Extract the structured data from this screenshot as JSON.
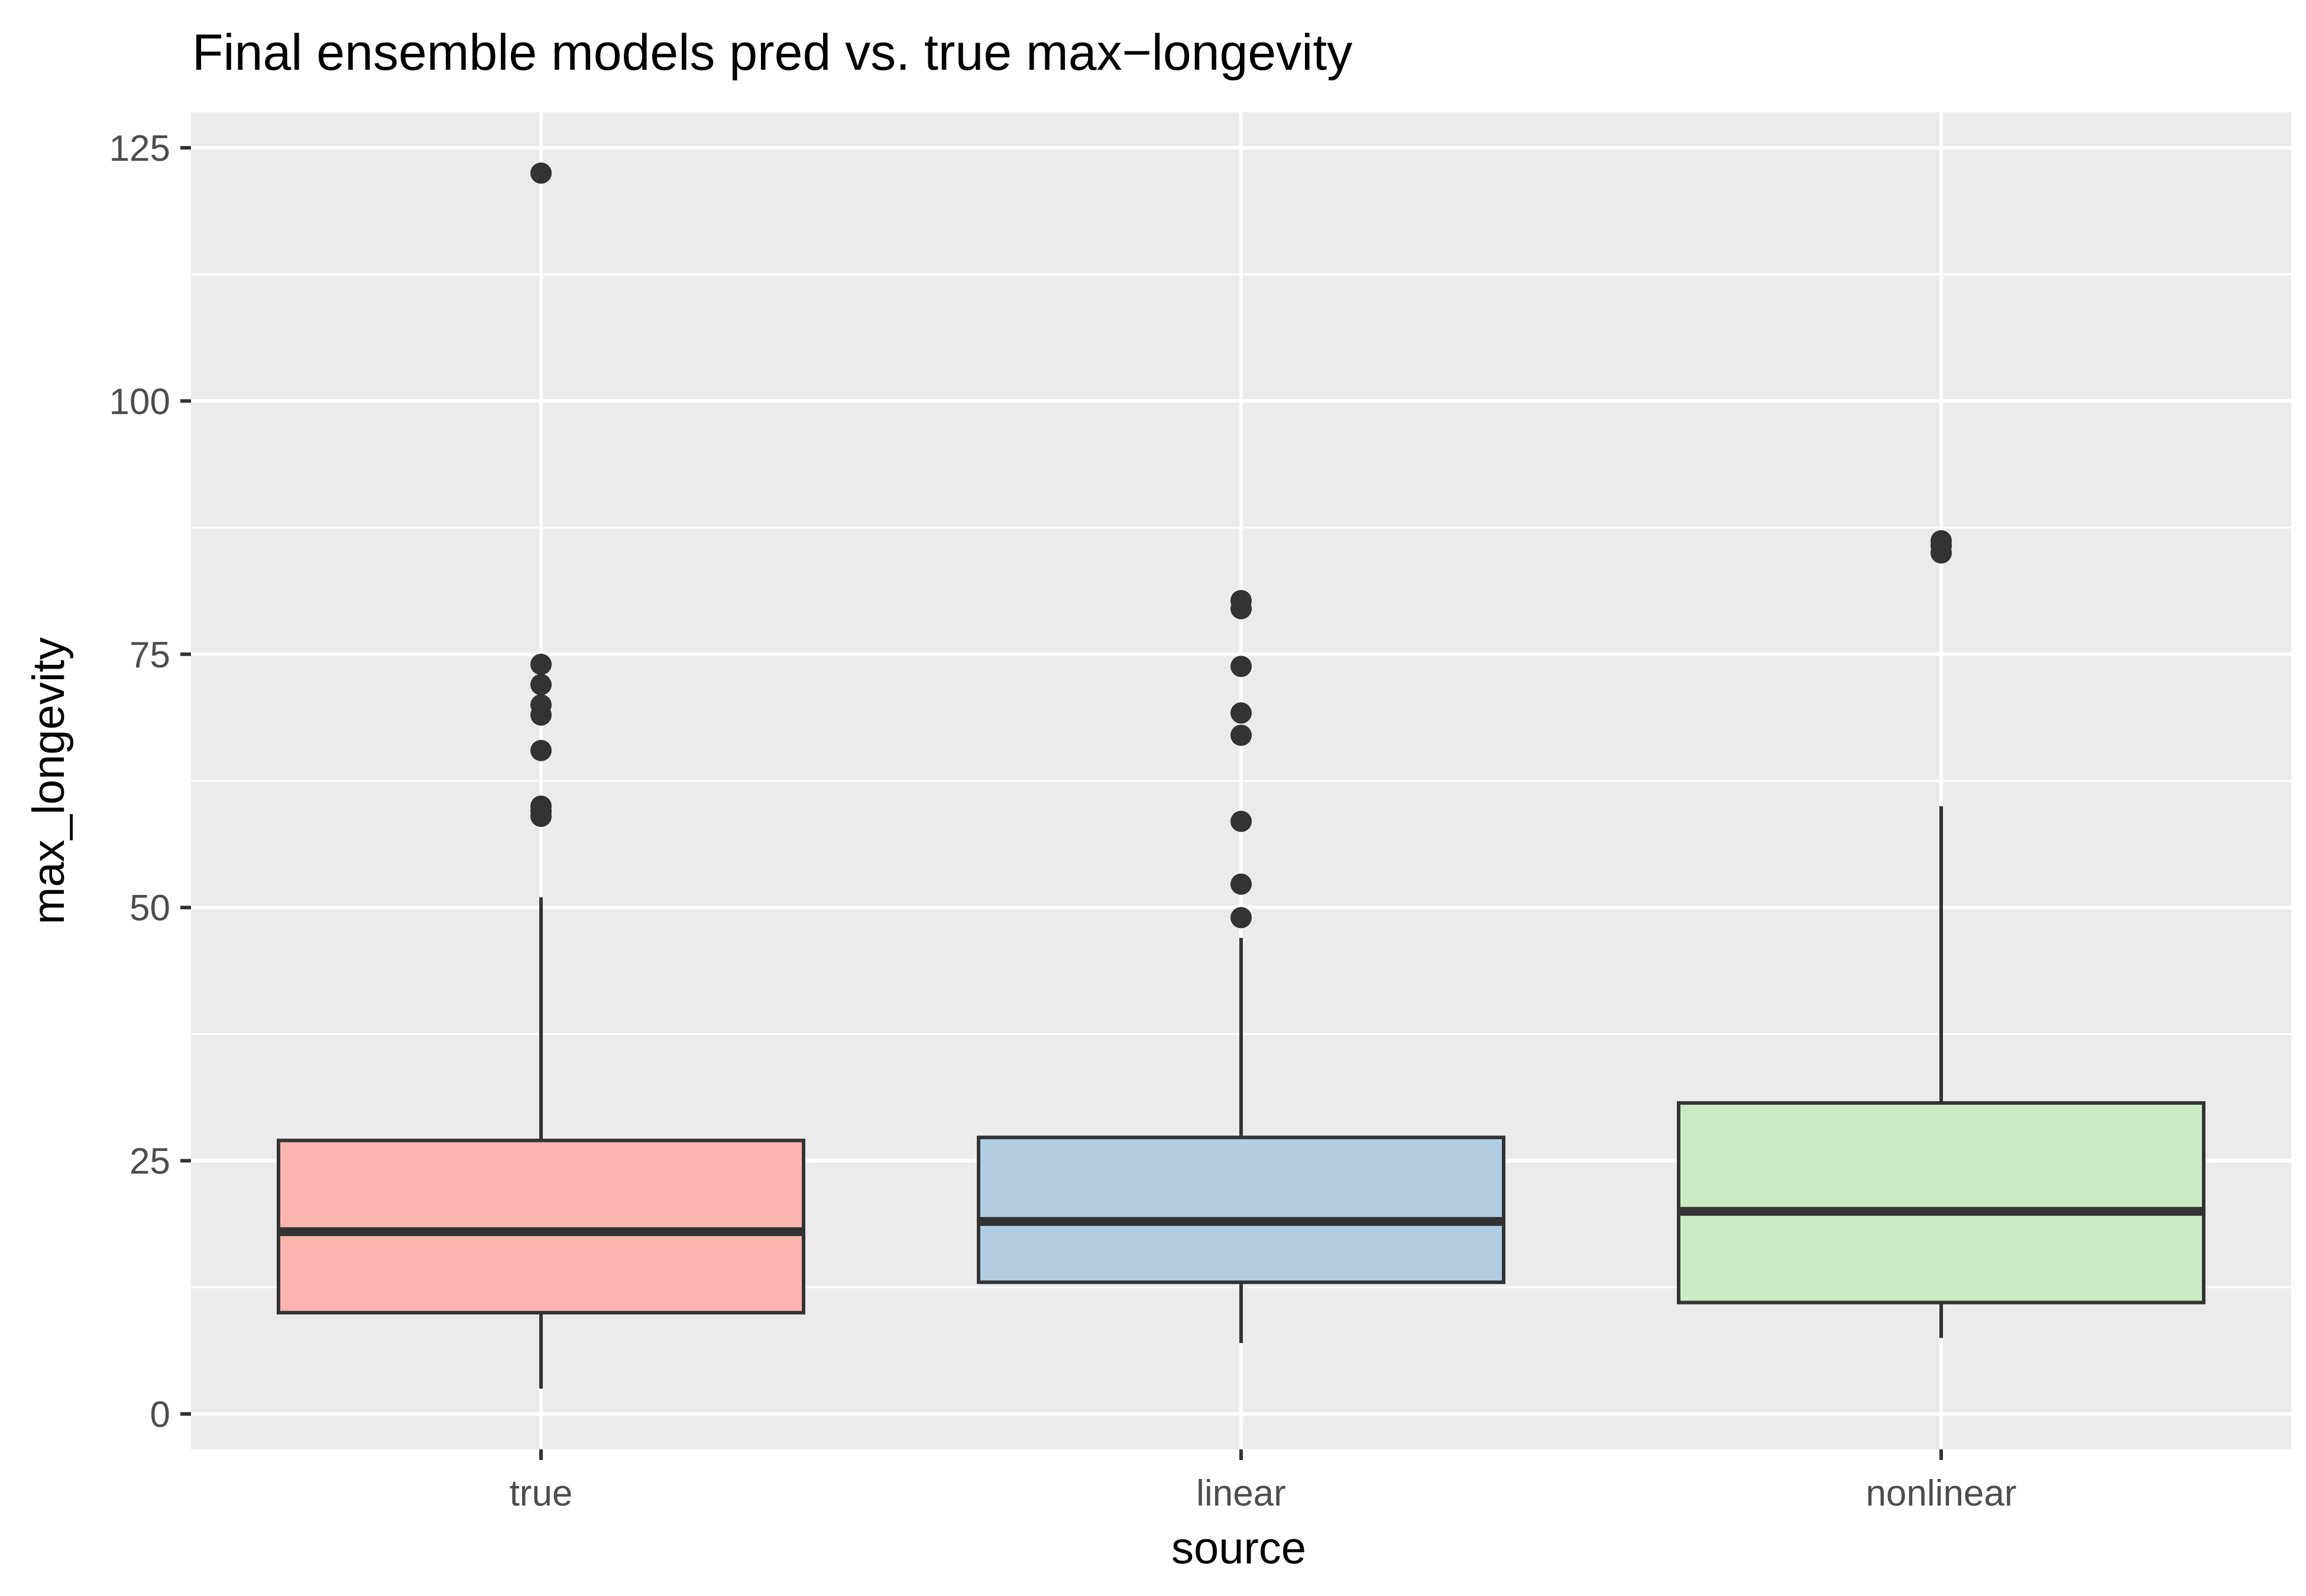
{
  "chart_data": {
    "type": "boxplot",
    "title": "Final ensemble models pred vs. true max−longevity",
    "xlabel": "source",
    "ylabel": "max_longevity",
    "ylim": [
      -3.5,
      128.5
    ],
    "yticks": [
      0,
      25,
      50,
      75,
      100,
      125
    ],
    "ytick_labels": [
      "0",
      "25",
      "50",
      "75",
      "100",
      "125"
    ],
    "grid": true,
    "panel_background": "#ebebeb",
    "grid_color": "#ffffff",
    "box_edge_color": "#333333",
    "categories": [
      "true",
      "linear",
      "nonlinear"
    ],
    "boxes": [
      {
        "category": "true",
        "fill": "#fbb4ae",
        "whisker_low": 2.5,
        "q1": 10,
        "median": 18,
        "q3": 27,
        "whisker_high": 51,
        "outliers": [
          122.5,
          74,
          72,
          70,
          69,
          65.5,
          60,
          59.5,
          59
        ]
      },
      {
        "category": "linear",
        "fill": "#b3cde3",
        "whisker_low": 7,
        "q1": 13,
        "median": 19,
        "q3": 27.3,
        "whisker_high": 47,
        "outliers": [
          80.3,
          79.5,
          73.8,
          69.2,
          67,
          58.5,
          52.3,
          49
        ]
      },
      {
        "category": "nonlinear",
        "fill": "#ccebc5",
        "whisker_low": 7.5,
        "q1": 11,
        "median": 20,
        "q3": 30.7,
        "whisker_high": 60,
        "outliers": [
          86.2,
          85.7,
          85
        ]
      }
    ]
  }
}
